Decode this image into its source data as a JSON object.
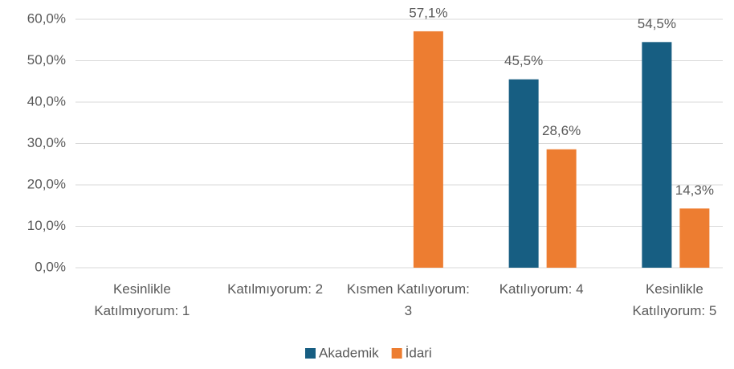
{
  "chart_data": {
    "type": "bar",
    "categories": [
      "Kesinlikle Katılmıyorum: 1",
      "Katılmıyorum: 2",
      "Kısmen Katılıyorum: 3",
      "Katılıyorum: 4",
      "Kesinlikle Katılıyorum: 5"
    ],
    "series": [
      {
        "name": "Akademik",
        "color": "#175e82",
        "values": [
          null,
          null,
          null,
          45.5,
          54.5
        ],
        "value_labels": [
          null,
          null,
          null,
          "45,5%",
          "54,5%"
        ]
      },
      {
        "name": "İdari",
        "color": "#ed7d31",
        "values": [
          null,
          null,
          57.1,
          28.6,
          14.3
        ],
        "value_labels": [
          null,
          null,
          "57,1%",
          "28,6%",
          "14,3%"
        ]
      }
    ],
    "ylim": [
      0,
      60
    ],
    "yticks": [
      {
        "value": 0,
        "label": "0,0%"
      },
      {
        "value": 10,
        "label": "10,0%"
      },
      {
        "value": 20,
        "label": "20,0%"
      },
      {
        "value": 30,
        "label": "30,0%"
      },
      {
        "value": 40,
        "label": "40,0%"
      },
      {
        "value": 50,
        "label": "50,0%"
      },
      {
        "value": 60,
        "label": "60,0%"
      }
    ],
    "grid": true,
    "legend": "bottom"
  }
}
